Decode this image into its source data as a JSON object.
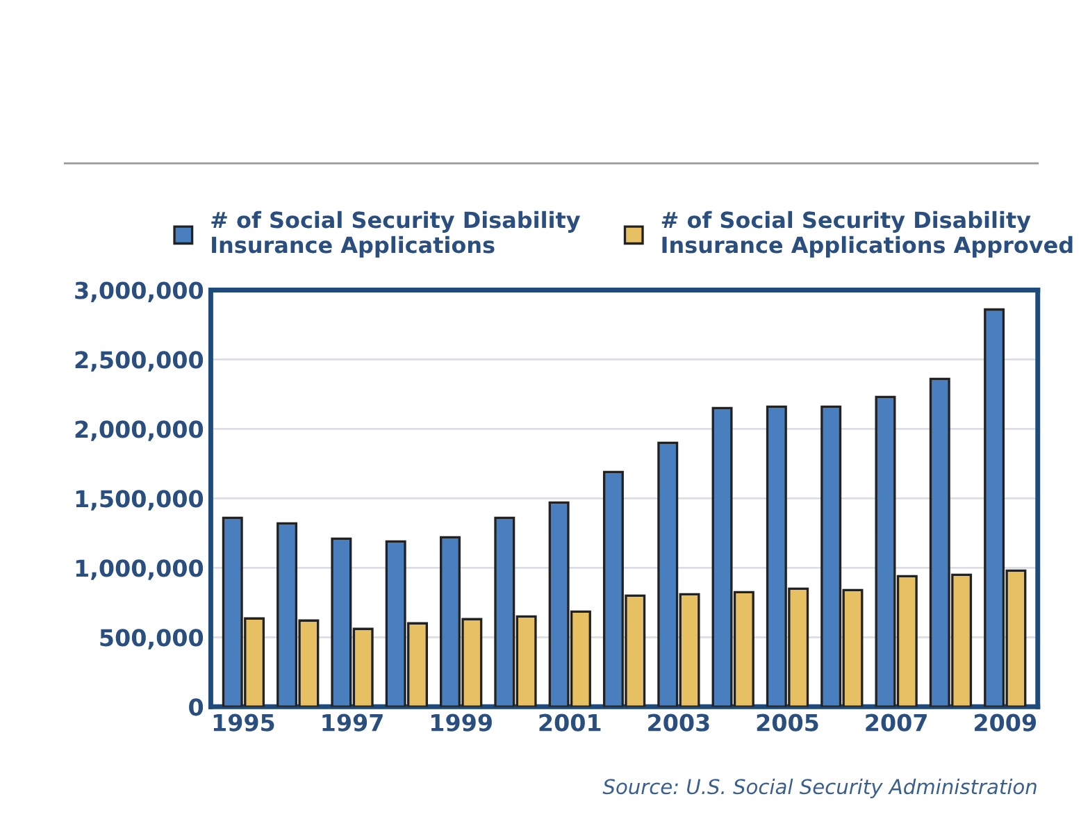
{
  "chart_data": {
    "type": "bar",
    "categories": [
      "1995",
      null,
      "1997",
      null,
      "1999",
      null,
      "2001",
      null,
      "2003",
      null,
      "2005",
      null,
      "2007",
      null,
      "2009"
    ],
    "series": [
      {
        "name": "# of Social Security Disability\nInsurance Applications",
        "color": "#4a7fbf",
        "values": [
          1360000,
          1320000,
          1210000,
          1190000,
          1220000,
          1360000,
          1470000,
          1690000,
          1900000,
          2150000,
          2160000,
          2160000,
          2230000,
          2360000,
          2860000
        ]
      },
      {
        "name": "# of Social Security Disability\nInsurance Applications Approved",
        "color": "#e8c064",
        "values": [
          635000,
          620000,
          560000,
          600000,
          630000,
          650000,
          685000,
          800000,
          810000,
          825000,
          850000,
          840000,
          940000,
          950000,
          980000
        ]
      }
    ],
    "ylim": [
      0,
      3000000
    ],
    "yticks": [
      {
        "value": 0,
        "label": "0"
      },
      {
        "value": 500000,
        "label": "500,000"
      },
      {
        "value": 1000000,
        "label": "1,000,000"
      },
      {
        "value": 1500000,
        "label": "1,500,000"
      },
      {
        "value": 2000000,
        "label": "2,000,000"
      },
      {
        "value": 2500000,
        "label": "2,500,000"
      },
      {
        "value": 3000000,
        "label": "3,000,000"
      }
    ],
    "grid": "y",
    "legend": "top",
    "annotations": [
      "Source: U.S. Social Security Administration"
    ]
  }
}
